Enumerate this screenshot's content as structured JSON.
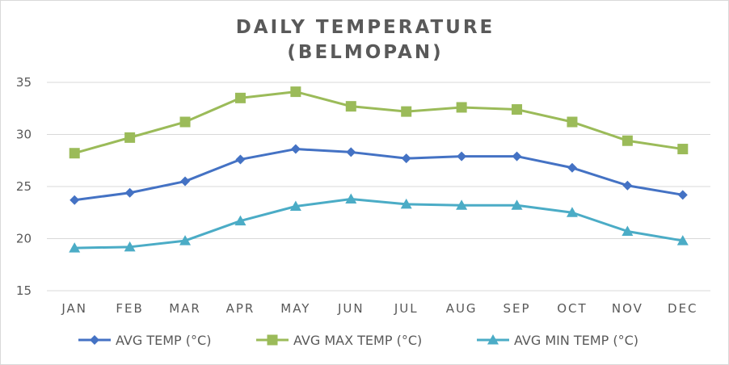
{
  "chart_data": {
    "type": "line",
    "title": "DAILY TEMPERATURE",
    "subtitle": "(BELMOPAN)",
    "xlabel": "",
    "ylabel": "",
    "categories": [
      "JAN",
      "FEB",
      "MAR",
      "APR",
      "MAY",
      "JUN",
      "JUL",
      "AUG",
      "SEP",
      "OCT",
      "NOV",
      "DEC"
    ],
    "ylim": [
      15,
      35
    ],
    "yticks": [
      15,
      20,
      25,
      30,
      35
    ],
    "grid": true,
    "legend_position": "bottom",
    "series": [
      {
        "name": "AVG TEMP (°C)",
        "color": "#4472c4",
        "marker": "diamond",
        "values": [
          23.7,
          24.4,
          25.5,
          27.6,
          28.6,
          28.3,
          27.7,
          27.9,
          27.9,
          26.8,
          25.1,
          24.2
        ]
      },
      {
        "name": "AVG MAX TEMP (°C)",
        "color": "#9bbb59",
        "marker": "square",
        "values": [
          28.2,
          29.7,
          31.2,
          33.5,
          34.1,
          32.7,
          32.2,
          32.6,
          32.4,
          31.2,
          29.4,
          28.6
        ]
      },
      {
        "name": "AVG MIN TEMP (°C)",
        "color": "#4bacc6",
        "marker": "triangle",
        "values": [
          19.1,
          19.2,
          19.8,
          21.7,
          23.1,
          23.8,
          23.3,
          23.2,
          23.2,
          22.5,
          20.7,
          19.8
        ]
      }
    ]
  }
}
